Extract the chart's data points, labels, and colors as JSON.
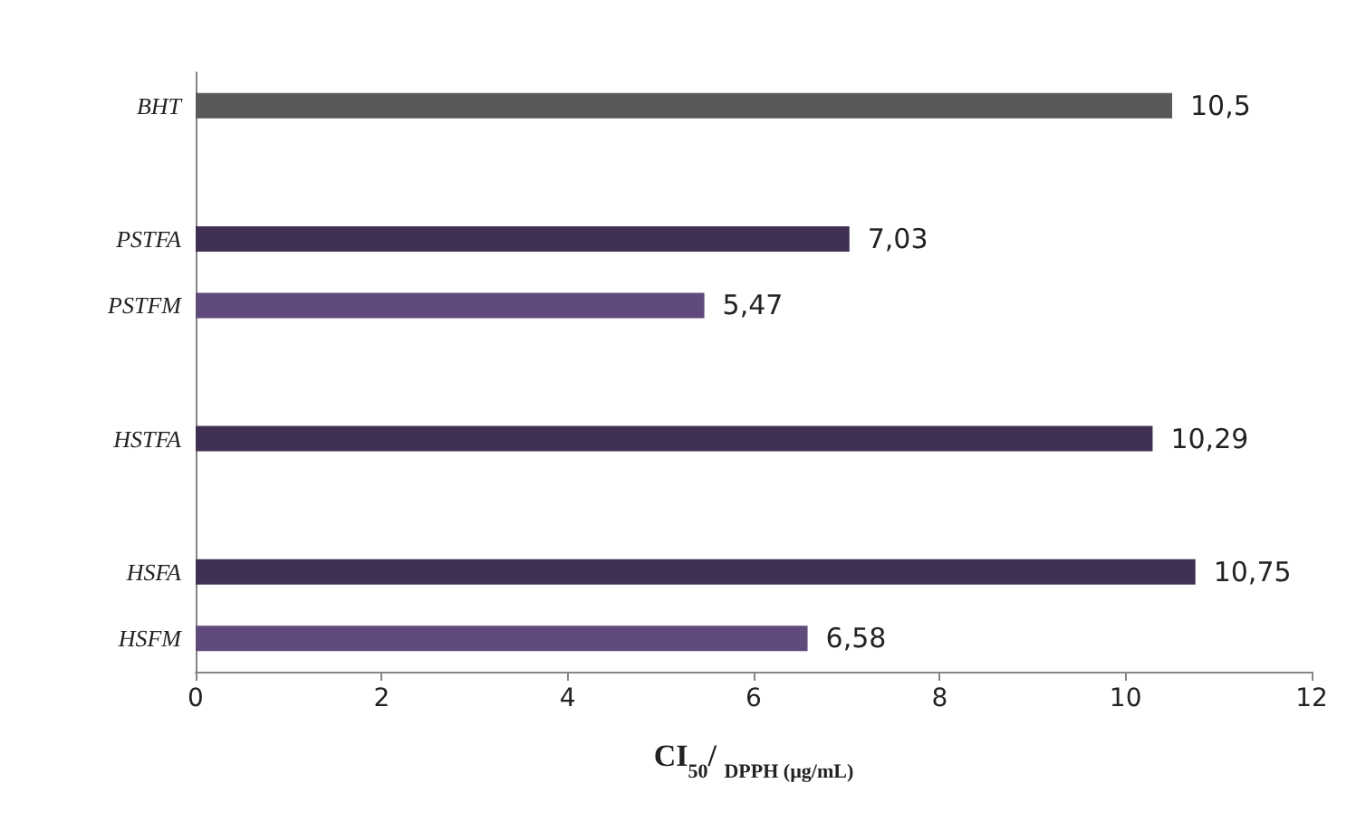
{
  "chart_data": {
    "type": "bar",
    "orientation": "horizontal",
    "xlabel": "CI$_{50}$/ $_{DPPH (µg/mL)}$",
    "categories": [
      "BHT",
      null,
      "PSTFA",
      "PSTFM",
      null,
      "HSTFA",
      null,
      "HSFA",
      "HSFM"
    ],
    "values": [
      10.5,
      null,
      7.03,
      5.47,
      null,
      10.29,
      null,
      10.75,
      6.58
    ],
    "colors": [
      "#595959",
      null,
      "#403152",
      "#604a7b",
      null,
      "#403152",
      null,
      "#403152",
      "#604a7b"
    ],
    "value_labels": [
      "10,5",
      null,
      "7,03",
      "5,47",
      null,
      "10,29",
      null,
      "10,75",
      "6,58"
    ],
    "xlim": [
      0,
      12
    ],
    "xticks": [
      0,
      2,
      4,
      6,
      8,
      10,
      12
    ],
    "grid": false
  }
}
